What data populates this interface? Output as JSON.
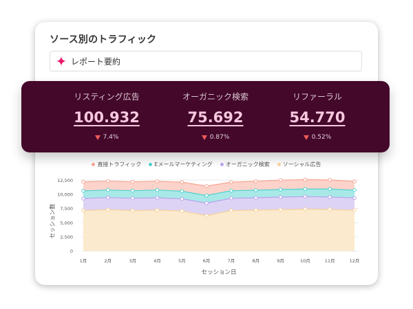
{
  "card": {
    "title": "ソース別のトラフィック",
    "summary_button": {
      "icon": "sparkle-icon",
      "icon_color": "#e8196b",
      "label": "レポート要約"
    }
  },
  "metrics_banner": {
    "background": "#44082a",
    "items": [
      {
        "label": "リスティング広告",
        "value": "100.932",
        "change": "7.4%",
        "trend": "down"
      },
      {
        "label": "オーガニック検索",
        "value": "75.692",
        "change": "0.87%",
        "trend": "down"
      },
      {
        "label": "リファーラル",
        "value": "54.770",
        "change": "0.52%",
        "trend": "down"
      }
    ]
  },
  "chart_data": {
    "type": "area",
    "stacked": true,
    "title": "",
    "xlabel": "セッション日",
    "ylabel": "セッション数",
    "categories": [
      "1月",
      "2月",
      "3月",
      "4月",
      "5月",
      "6月",
      "7月",
      "8月",
      "9月",
      "10月",
      "11月",
      "12月"
    ],
    "ylim": [
      0,
      12500
    ],
    "yticks": [
      0,
      2500,
      5000,
      7500,
      10000,
      12500
    ],
    "ytick_labels": [
      "0",
      "2,500",
      "5,000",
      "7,500",
      "10,000",
      "12,500"
    ],
    "grid": true,
    "legend_position": "top",
    "legend": [
      "直接トラフィック",
      "Eメールマーケティング",
      "オーガニック検索",
      "ソーシャル広告"
    ],
    "series": [
      {
        "name": "直接トラフィック",
        "line_color": "#f6a494",
        "fill_color": "#fcd3ca",
        "values": [
          1610,
          1570,
          1570,
          1540,
          1600,
          1660,
          1500,
          1570,
          1660,
          1650,
          1610,
          1540
        ]
      },
      {
        "name": "Eメールマーケティング",
        "line_color": "#4fd1d1",
        "fill_color": "#a8e9e7",
        "values": [
          1330,
          1330,
          1330,
          1370,
          1330,
          1330,
          1330,
          1330,
          1330,
          1330,
          1410,
          1370
        ]
      },
      {
        "name": "オーガニック検索",
        "line_color": "#b7a3ec",
        "fill_color": "#ddd3f4",
        "values": [
          2140,
          2130,
          2180,
          2170,
          2150,
          2210,
          2180,
          2170,
          2210,
          2220,
          2180,
          2180
        ]
      },
      {
        "name": "ソーシャル広告",
        "line_color": "#f6d29a",
        "fill_color": "#fbeacd",
        "values": [
          7130,
          7300,
          7130,
          7220,
          7060,
          6250,
          7130,
          7220,
          7300,
          7380,
          7340,
          7180
        ]
      }
    ]
  }
}
